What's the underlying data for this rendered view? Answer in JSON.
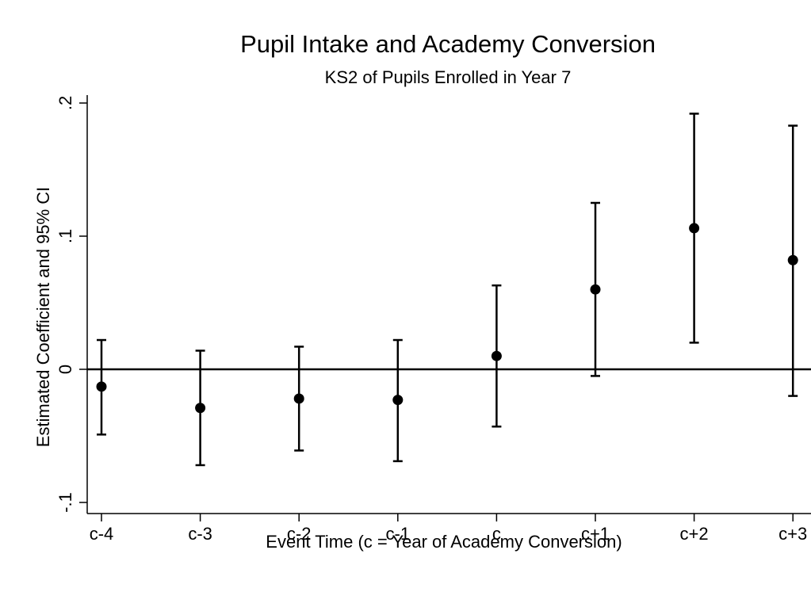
{
  "chart_data": {
    "type": "scatter",
    "title": "Pupil Intake and Academy Conversion",
    "subtitle": "KS2 of Pupils Enrolled in Year 7",
    "xlabel": "Event Time (c = Year of Academy Conversion)",
    "ylabel": "Estimated Coefficient and 95% CI",
    "categories": [
      "c-4",
      "c-3",
      "c-2",
      "c-1",
      "c",
      "c+1",
      "c+2",
      "c+3"
    ],
    "points": [
      {
        "x": "c-4",
        "estimate": -0.013,
        "ci_low": -0.049,
        "ci_high": 0.022
      },
      {
        "x": "c-3",
        "estimate": -0.029,
        "ci_low": -0.072,
        "ci_high": 0.014
      },
      {
        "x": "c-2",
        "estimate": -0.022,
        "ci_low": -0.061,
        "ci_high": 0.017
      },
      {
        "x": "c-1",
        "estimate": -0.023,
        "ci_low": -0.069,
        "ci_high": 0.022
      },
      {
        "x": "c",
        "estimate": 0.01,
        "ci_low": -0.043,
        "ci_high": 0.063
      },
      {
        "x": "c+1",
        "estimate": 0.06,
        "ci_low": -0.005,
        "ci_high": 0.125
      },
      {
        "x": "c+2",
        "estimate": 0.106,
        "ci_low": 0.02,
        "ci_high": 0.192
      },
      {
        "x": "c+3",
        "estimate": 0.082,
        "ci_low": -0.02,
        "ci_high": 0.183
      }
    ],
    "y_ticks": [
      -0.1,
      0,
      0.1,
      0.2
    ],
    "y_tick_labels": [
      "-.1",
      "0",
      ".1",
      ".2"
    ],
    "ylim": [
      -0.11,
      0.2
    ],
    "reference_line_y": 0,
    "grid": false,
    "colors": {
      "marker": "#000000",
      "line": "#000000",
      "background": "#ffffff"
    }
  }
}
